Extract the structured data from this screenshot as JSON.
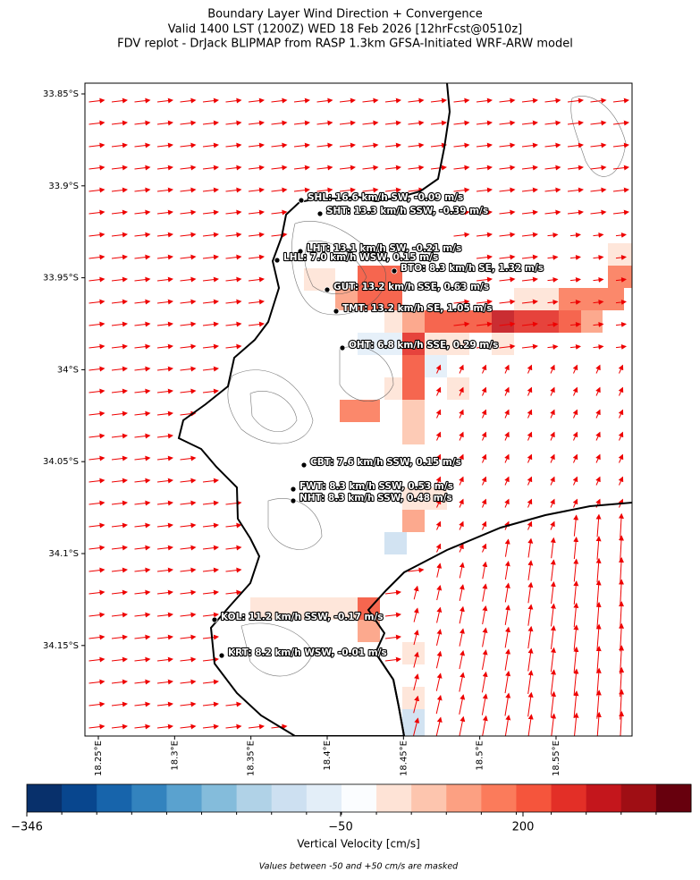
{
  "header": {
    "title_lines": [
      "Boundary Layer Wind Direction + Convergence",
      "Valid 1400 LST (1200Z) WED 18 Feb 2026 [12hrFcst@0510z]",
      "FDV replot - DrJack BLIPMAP from RASP 1.3km GFSA-Initiated WRF-ARW model"
    ]
  },
  "map": {
    "lat_ticks": [
      {
        "value": -33.85,
        "label": "33.85°S"
      },
      {
        "value": -33.9,
        "label": "33.9°S"
      },
      {
        "value": -33.95,
        "label": "33.95°S"
      },
      {
        "value": -34.0,
        "label": "34°S"
      },
      {
        "value": -34.05,
        "label": "34.05°S"
      },
      {
        "value": -34.1,
        "label": "34.1°S"
      },
      {
        "value": -34.15,
        "label": "34.15°S"
      }
    ],
    "lon_ticks": [
      {
        "value": 18.25,
        "label": "18.25°E"
      },
      {
        "value": 18.3,
        "label": "18.3°E"
      },
      {
        "value": 18.35,
        "label": "18.35°E"
      },
      {
        "value": 18.4,
        "label": "18.4°E"
      },
      {
        "value": 18.45,
        "label": "18.45°E"
      },
      {
        "value": 18.5,
        "label": "18.5°E"
      },
      {
        "value": 18.55,
        "label": "18.55°E"
      }
    ],
    "stations": [
      "SHL: 16.6 km/h SW, -0.09 m/s",
      "SHT: 13.3 km/h SSW, -0.39 m/s",
      "LHT: 13.1 km/h SW, -0.21 m/s",
      "LHL: 7.0 km/h WSW, 0.15 m/s",
      "BTO: 8.3 km/h SE, 1.32 m/s",
      "GUT: 13.2 km/h SSE, 0.63 m/s",
      "TMT: 13.2 km/h SE, 1.05 m/s",
      "OHT: 6.8 km/h SSE, 0.29 m/s",
      "CBT: 7.6 km/h SSW, 0.15 m/s",
      "FWT: 8.3 km/h SSW, 0.53 m/s",
      "NHT: 8.3 km/h SSW, 0.48 m/s",
      "KOL: 11.2 km/h SSW, -0.17 m/s",
      "KRT: 8.2 km/h WSW, -0.01 m/s"
    ]
  },
  "colorbar": {
    "colors": [
      "#08306b",
      "#08468e",
      "#1764ab",
      "#3383be",
      "#5aa2cf",
      "#84bcdb",
      "#b0d2e7",
      "#cde0f1",
      "#e3eef8",
      "#fbfdff",
      "#fee3d6",
      "#fdc5ae",
      "#fca082",
      "#fb7b5b",
      "#f5553c",
      "#e32f27",
      "#c4161c",
      "#9f0e14",
      "#67000d"
    ],
    "ticks": [
      {
        "value": -346,
        "label": "−346"
      },
      {
        "value": -50,
        "label": "−50"
      },
      200
    ],
    "label": "Vertical Velocity [cm/s]",
    "note": "Values between -50 and +50 cm/s are masked"
  }
}
